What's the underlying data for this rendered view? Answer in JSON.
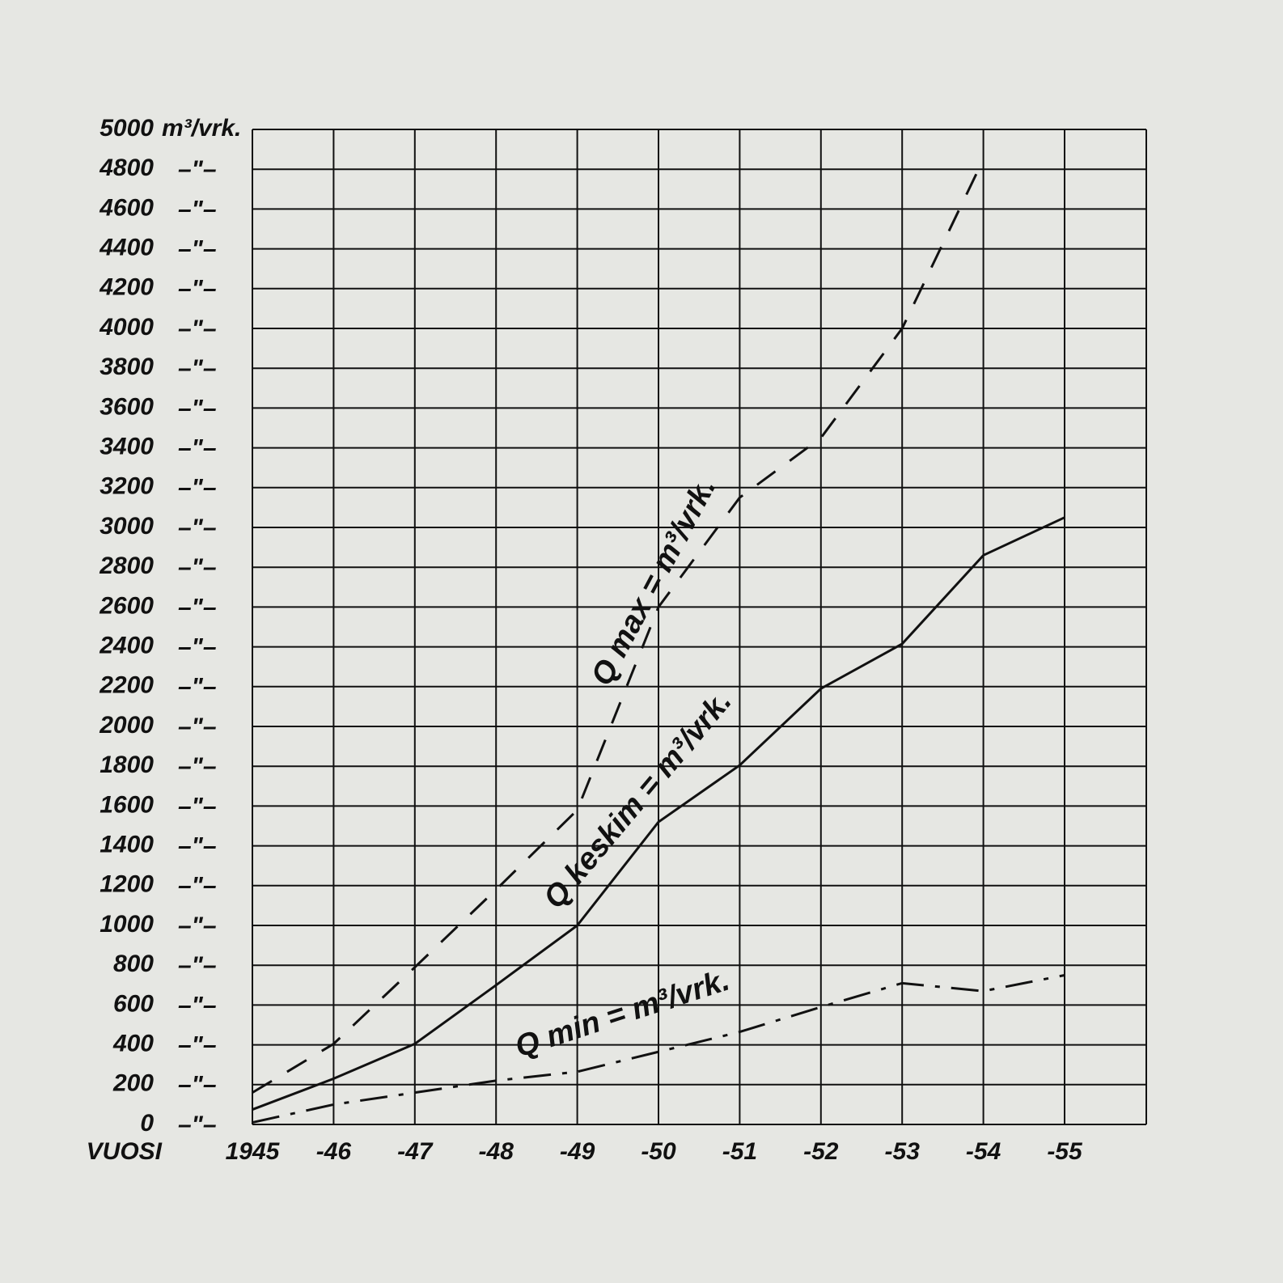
{
  "chart_data": {
    "type": "line",
    "y_unit": "m³/vrk.",
    "ytick_ditto": "–\"–",
    "xlabel": "VUOSI",
    "categories": [
      "1945",
      "-46",
      "-47",
      "-48",
      "-49",
      "-50",
      "-51",
      "-52",
      "-53",
      "-54",
      "-55"
    ],
    "series": [
      {
        "name": "Q max = m³/vrk.",
        "color": "#111111",
        "dash": "28 22",
        "values": [
          160,
          405,
          790,
          1180,
          1580,
          2600,
          3150,
          3450,
          4000,
          4850,
          null
        ]
      },
      {
        "name": "Q keskim = m³/vrk.",
        "color": "#111111",
        "dash": "none",
        "values": [
          75,
          230,
          405,
          700,
          1000,
          1520,
          1805,
          2190,
          2415,
          2860,
          3050
        ]
      },
      {
        "name": "Q min = m³/vrk.",
        "color": "#111111",
        "dash": "34 14 6 14",
        "values": [
          10,
          100,
          160,
          220,
          265,
          365,
          465,
          590,
          710,
          670,
          750
        ]
      }
    ],
    "ylim": [
      0,
      5000
    ],
    "yticks": [
      0,
      200,
      400,
      600,
      800,
      1000,
      1200,
      1400,
      1600,
      1800,
      2000,
      2200,
      2400,
      2600,
      2800,
      3000,
      3200,
      3400,
      3600,
      3800,
      4000,
      4200,
      4400,
      4600,
      4800,
      5000
    ],
    "grid": true
  }
}
